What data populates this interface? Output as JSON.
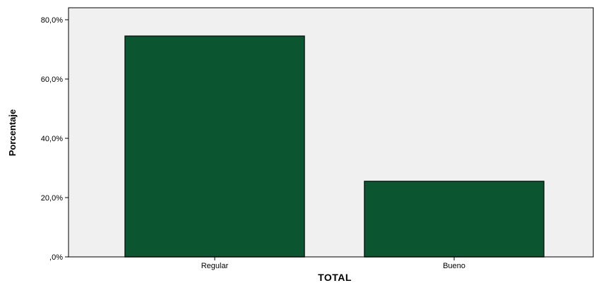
{
  "chart_data": {
    "type": "bar",
    "categories": [
      "Regular",
      "Bueno"
    ],
    "values": [
      74.5,
      25.5
    ],
    "ylim": [
      0,
      80
    ],
    "yticks": [
      0,
      20,
      40,
      60,
      80
    ],
    "ytick_labels": [
      ",0%",
      "20,0%",
      "40,0%",
      "60,0%",
      "80,0%"
    ],
    "xlabel": "TOTAL",
    "ylabel": "Porcentaje",
    "title": "",
    "grid": false,
    "legend": "none",
    "colors": {
      "bar": "#0b5630",
      "bar_stroke": "#0a1f14",
      "plot_background": "#f0f0f0",
      "axis": "#000000"
    }
  }
}
